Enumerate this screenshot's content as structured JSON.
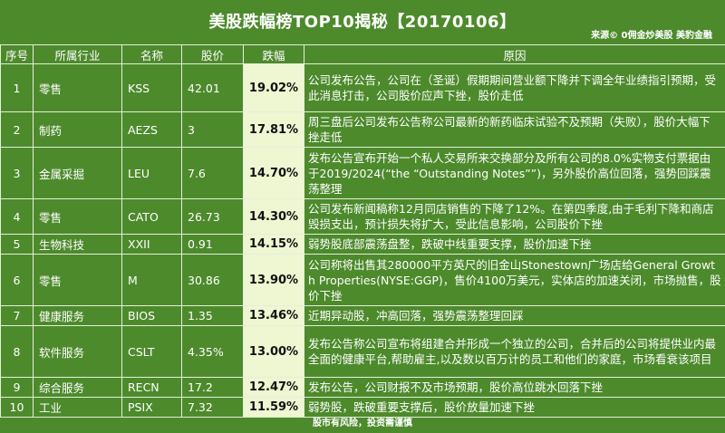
{
  "header": {
    "title": "美股跌幅榜TOP10揭秘【20170106】",
    "source": "来源© 0佣金炒美股 美豹金融"
  },
  "table": {
    "columns": [
      "序号",
      "所属行业",
      "名称",
      "股价",
      "跌幅",
      "原因"
    ],
    "rows": [
      {
        "idx": "1",
        "industry": "零售",
        "name": "KSS",
        "price": "42.01",
        "drop": "19.02%",
        "reason": "公司发布公告，公司在（圣诞）假期期间营业额下降并下调全年业绩指引预期，受此消息打击，公司股价应声下挫，股价走低"
      },
      {
        "idx": "2",
        "industry": "制药",
        "name": "AEZS",
        "price": "3",
        "drop": "17.81%",
        "reason": "周三盘后公司发布公告称公司最新的新药临床试验不及预期（失败），股价大幅下挫走低"
      },
      {
        "idx": "3",
        "industry": "金属采掘",
        "name": "LEU",
        "price": "7.6",
        "drop": "14.70%",
        "reason": "发布公告宣布开始一个私人交易所来交换部分及所有公司的8.0%实物支付票据由于2019/2024(“the “Outstanding Notes””)，另外股价高位回落，强势回踩震荡整理"
      },
      {
        "idx": "4",
        "industry": "零售",
        "name": "CATO",
        "price": "26.73",
        "drop": "14.30%",
        "reason": "公司发布新闻稿称12月同店销售的下降了12%。在第四季度,由于毛利下降和商店毁损支出，预计损失将扩大，受此信息影响，公司股价下挫"
      },
      {
        "idx": "5",
        "industry": "生物科技",
        "name": "XXII",
        "price": "0.91",
        "drop": "14.15%",
        "reason": "弱势股底部震荡盘整，跌破中线重要支撑，股价加速下挫"
      },
      {
        "idx": "6",
        "industry": "零售",
        "name": "M",
        "price": "30.86",
        "drop": "13.90%",
        "reason": "公司称将出售其280000平方英尺的旧金山Stonestown广场店给General Growth Properties(NYSE:GGP)，售价4100万美元，实体店的加速关闭，市场抛售，股价下挫"
      },
      {
        "idx": "7",
        "industry": "健康服务",
        "name": "BIOS",
        "price": "1.35",
        "drop": "13.46%",
        "reason": "近期异动股，冲高回落，强势震荡整理回踩"
      },
      {
        "idx": "8",
        "industry": "软件服务",
        "name": "CSLT",
        "price": "4.35%",
        "drop": "13.00%",
        "reason": "发布公告称公司宣布将组建合并形成一个独立的公司，合并后的公司将提供业内最全面的健康平台,帮助雇主,以及数以百万计的员工和他们的家庭，市场看衰该项目"
      },
      {
        "idx": "9",
        "industry": "综合服务",
        "name": "RECN",
        "price": "17.2",
        "drop": "12.47%",
        "reason": "发布公告，公司财报不及市场预期，股价高位跳水回落下挫"
      },
      {
        "idx": "10",
        "industry": "工业",
        "name": "PSIX",
        "price": "7.32",
        "drop": "11.59%",
        "reason": "弱势股，跌破重要支撑后，股价放量加速下挫"
      }
    ]
  },
  "footer": {
    "disclaimer": "股市有风险，投资需谨慎"
  },
  "colors": {
    "background": "#4d8a2c",
    "drop_cell": "#eef6d2",
    "grid_line": "#e4f0d8",
    "text": "#ffffff"
  }
}
